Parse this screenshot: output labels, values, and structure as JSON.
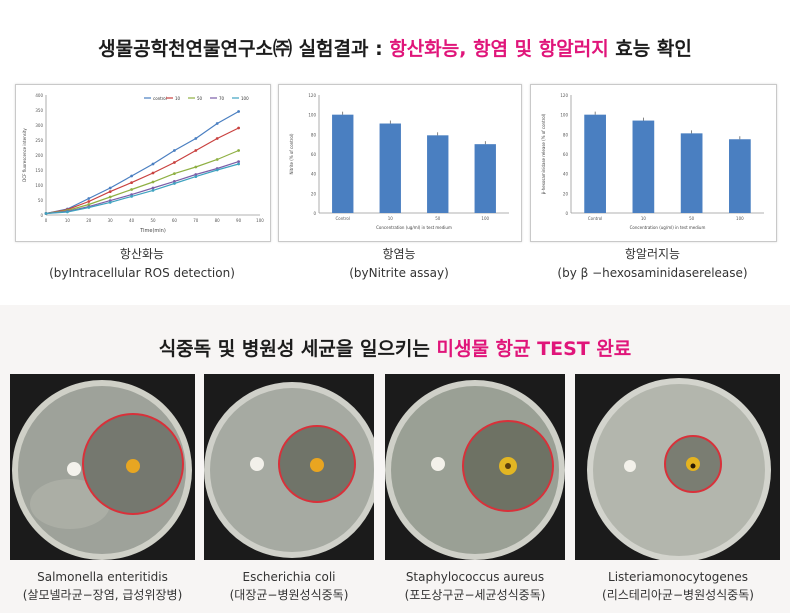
{
  "header": {
    "prefix": "생물공학천연물연구소㈜ 실험결과 : ",
    "highlight": "항산화능, 항염 및 항알러지",
    "suffix": " 효능 확인"
  },
  "charts": [
    {
      "type": "line",
      "xlabel": "Time(min)",
      "ylabel": "DCF fluorescence intensity",
      "xlim": [
        0,
        100
      ],
      "ylim": [
        0,
        400
      ],
      "xticks": [
        "0",
        "10",
        "20",
        "30",
        "40",
        "50",
        "60",
        "70",
        "80",
        "90",
        "100"
      ],
      "yticks": [
        "0",
        "50",
        "100",
        "150",
        "200",
        "250",
        "300",
        "350",
        "400"
      ],
      "series": [
        {
          "name": "control",
          "color": "#4a7fc1",
          "x": [
            0,
            10,
            20,
            30,
            40,
            50,
            60,
            70,
            80,
            90
          ],
          "y": [
            5,
            20,
            55,
            90,
            130,
            170,
            215,
            255,
            305,
            345
          ]
        },
        {
          "name": "10",
          "color": "#c9413f",
          "x": [
            0,
            10,
            20,
            30,
            40,
            50,
            60,
            70,
            80,
            90
          ],
          "y": [
            5,
            18,
            45,
            78,
            108,
            140,
            175,
            215,
            255,
            290
          ]
        },
        {
          "name": "50",
          "color": "#8fb043",
          "x": [
            0,
            10,
            20,
            30,
            40,
            50,
            60,
            70,
            80,
            90
          ],
          "y": [
            5,
            15,
            35,
            60,
            85,
            110,
            138,
            160,
            185,
            215
          ]
        },
        {
          "name": "70",
          "color": "#7b5ea8",
          "x": [
            0,
            10,
            20,
            30,
            40,
            50,
            60,
            70,
            80,
            90
          ],
          "y": [
            5,
            12,
            28,
            48,
            68,
            90,
            112,
            135,
            155,
            178
          ]
        },
        {
          "name": "100",
          "color": "#3ea2c0",
          "x": [
            0,
            10,
            20,
            30,
            40,
            50,
            60,
            70,
            80,
            90
          ],
          "y": [
            5,
            10,
            25,
            42,
            62,
            82,
            105,
            128,
            150,
            170
          ]
        }
      ]
    },
    {
      "type": "bar",
      "xlabel": "Concentration (ug/ml) in test medium",
      "ylabel": "Nitrite (% of control)",
      "ylim": [
        0,
        120
      ],
      "yticks": [
        "0",
        "20",
        "40",
        "60",
        "80",
        "100",
        "120"
      ],
      "categories": [
        "Control",
        "10",
        "50",
        "100"
      ],
      "values": [
        100,
        91,
        79,
        70
      ],
      "color": "#4a7fc1"
    },
    {
      "type": "bar",
      "xlabel": "Concentration (ug/ml) in test medium",
      "ylabel": "β-hexosaminidase release (% of control)",
      "ylim": [
        0,
        120
      ],
      "yticks": [
        "0",
        "20",
        "40",
        "60",
        "80",
        "100",
        "120"
      ],
      "categories": [
        "Control",
        "10",
        "50",
        "100"
      ],
      "values": [
        100,
        94,
        81,
        75
      ],
      "color": "#4a7fc1"
    }
  ],
  "chart_captions": [
    {
      "title": "항산화능",
      "sub": "(byIntracellular ROS detection)"
    },
    {
      "title": "항염능",
      "sub": "(byNitrite assay)"
    },
    {
      "title": "항알러지능",
      "sub": "(by β −hexosaminidaserelease)"
    }
  ],
  "section2": {
    "prefix": "식중독 및 병원성 세균을 일으키는 ",
    "highlight": "미생물 항균 TEST 완료"
  },
  "bacteria": [
    {
      "name": "Salmonella enteritidis",
      "desc": "(살모넬라균−장염, 급성위장병)"
    },
    {
      "name": "Escherichia coli",
      "desc": "(대장균−병원성식중독)"
    },
    {
      "name": "Staphylococcus aureus",
      "desc": "(포도상구균−세균성식중독)"
    },
    {
      "name": "Listeriamonocytogenes",
      "desc": "(리스테리아균−병원성식중독)"
    }
  ],
  "colors": {
    "accent": "#e0157a",
    "bar": "#4a7fc1",
    "ring": "#d8313a"
  }
}
